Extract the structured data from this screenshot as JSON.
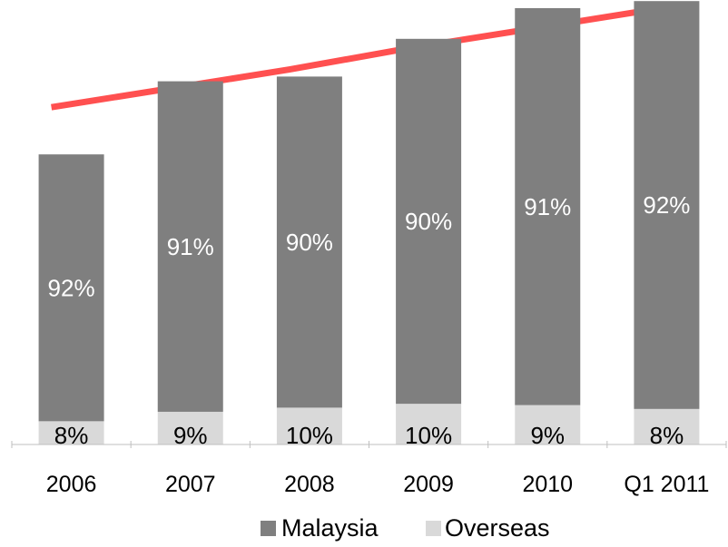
{
  "chart_data": {
    "type": "bar",
    "stacked": true,
    "categories": [
      "2006",
      "2007",
      "2008",
      "2009",
      "2010",
      "Q1 2011"
    ],
    "series": [
      {
        "name": "Malaysia",
        "values": [
          92,
          91,
          90,
          90,
          91,
          92
        ],
        "labels": [
          "92%",
          "91%",
          "90%",
          "90%",
          "91%",
          "92%"
        ],
        "color": "#7f7f7f"
      },
      {
        "name": "Overseas",
        "values": [
          8,
          9,
          10,
          10,
          9,
          8
        ],
        "labels": [
          "8%",
          "9%",
          "10%",
          "10%",
          "9%",
          "8%"
        ],
        "color": "#d9d9d9"
      }
    ],
    "totals_relative": [
      0.615,
      0.77,
      0.78,
      0.86,
      0.925,
      0.94
    ],
    "trend_line": {
      "color": "#ff5050",
      "values_relative": [
        0.715,
        0.755,
        0.795,
        0.84,
        0.88,
        0.92
      ]
    },
    "title": "",
    "xlabel": "",
    "ylabel": "",
    "y_axis_visible": false,
    "grid": false,
    "legend": "bottom"
  }
}
